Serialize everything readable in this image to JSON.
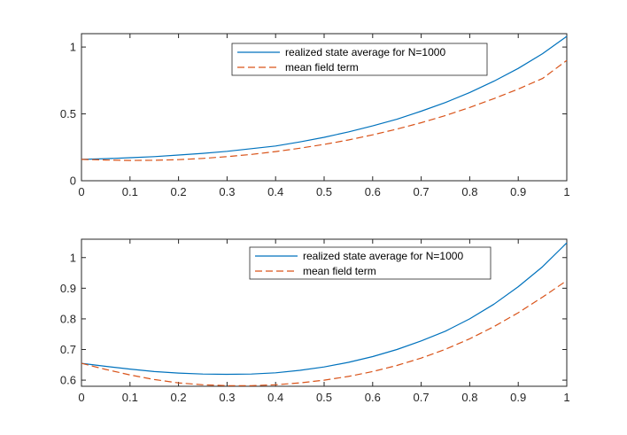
{
  "colors": {
    "realized": "#0072BD",
    "mean_field": "#D95319",
    "axis": "#262626",
    "background": "#ffffff"
  },
  "chart_data": [
    {
      "type": "line",
      "title": "",
      "xlabel": "",
      "ylabel": "",
      "xlim": [
        0,
        1
      ],
      "ylim": [
        0,
        1.1
      ],
      "xticks": [
        "0",
        "0.1",
        "0.2",
        "0.3",
        "0.4",
        "0.5",
        "0.6",
        "0.7",
        "0.8",
        "0.9",
        "1"
      ],
      "xtick_values": [
        0,
        0.1,
        0.2,
        0.3,
        0.4,
        0.5,
        0.6,
        0.7,
        0.8,
        0.9,
        1
      ],
      "yticks": [
        "0",
        "0.5",
        "1"
      ],
      "ytick_values": [
        0,
        0.5,
        1
      ],
      "legend_position": "top-right",
      "series": [
        {
          "name": "realized state average for N=1000",
          "style": "solid",
          "color": "#0072BD",
          "x": [
            0,
            0.05,
            0.1,
            0.15,
            0.2,
            0.25,
            0.3,
            0.35,
            0.4,
            0.45,
            0.5,
            0.55,
            0.6,
            0.65,
            0.7,
            0.75,
            0.8,
            0.85,
            0.9,
            0.95,
            1.0
          ],
          "y": [
            0.16,
            0.165,
            0.172,
            0.18,
            0.192,
            0.205,
            0.22,
            0.24,
            0.26,
            0.29,
            0.325,
            0.365,
            0.41,
            0.46,
            0.52,
            0.585,
            0.66,
            0.745,
            0.84,
            0.95,
            1.08
          ]
        },
        {
          "name": "mean field term",
          "style": "dashed",
          "color": "#D95319",
          "x": [
            0,
            0.05,
            0.1,
            0.15,
            0.2,
            0.25,
            0.3,
            0.35,
            0.4,
            0.45,
            0.5,
            0.55,
            0.6,
            0.65,
            0.7,
            0.75,
            0.8,
            0.85,
            0.9,
            0.95,
            1.0
          ],
          "y": [
            0.16,
            0.155,
            0.152,
            0.153,
            0.158,
            0.167,
            0.18,
            0.197,
            0.218,
            0.243,
            0.272,
            0.305,
            0.343,
            0.386,
            0.434,
            0.488,
            0.548,
            0.614,
            0.686,
            0.765,
            0.9
          ]
        }
      ]
    },
    {
      "type": "line",
      "title": "",
      "xlabel": "",
      "ylabel": "",
      "xlim": [
        0,
        1
      ],
      "ylim": [
        0.58,
        1.06
      ],
      "xticks": [
        "0",
        "0.1",
        "0.2",
        "0.3",
        "0.4",
        "0.5",
        "0.6",
        "0.7",
        "0.8",
        "0.9",
        "1"
      ],
      "xtick_values": [
        0,
        0.1,
        0.2,
        0.3,
        0.4,
        0.5,
        0.6,
        0.7,
        0.8,
        0.9,
        1
      ],
      "yticks": [
        "0.6",
        "0.7",
        "0.8",
        "0.9",
        "1"
      ],
      "ytick_values": [
        0.6,
        0.7,
        0.8,
        0.9,
        1
      ],
      "legend_position": "top-right",
      "series": [
        {
          "name": "realized state average for N=1000",
          "style": "solid",
          "color": "#0072BD",
          "x": [
            0,
            0.05,
            0.1,
            0.15,
            0.2,
            0.25,
            0.3,
            0.35,
            0.4,
            0.45,
            0.5,
            0.55,
            0.6,
            0.65,
            0.7,
            0.75,
            0.8,
            0.85,
            0.9,
            0.95,
            1.0
          ],
          "y": [
            0.655,
            0.645,
            0.636,
            0.628,
            0.623,
            0.62,
            0.619,
            0.62,
            0.624,
            0.632,
            0.643,
            0.658,
            0.677,
            0.7,
            0.728,
            0.76,
            0.8,
            0.848,
            0.905,
            0.97,
            1.048
          ]
        },
        {
          "name": "mean field term",
          "style": "dashed",
          "color": "#D95319",
          "x": [
            0,
            0.05,
            0.1,
            0.15,
            0.2,
            0.25,
            0.3,
            0.35,
            0.4,
            0.45,
            0.5,
            0.55,
            0.6,
            0.65,
            0.7,
            0.75,
            0.8,
            0.85,
            0.9,
            0.95,
            1.0
          ],
          "y": [
            0.655,
            0.635,
            0.617,
            0.602,
            0.591,
            0.585,
            0.582,
            0.582,
            0.585,
            0.591,
            0.6,
            0.612,
            0.628,
            0.648,
            0.672,
            0.701,
            0.735,
            0.775,
            0.82,
            0.871,
            0.925
          ]
        }
      ]
    }
  ]
}
